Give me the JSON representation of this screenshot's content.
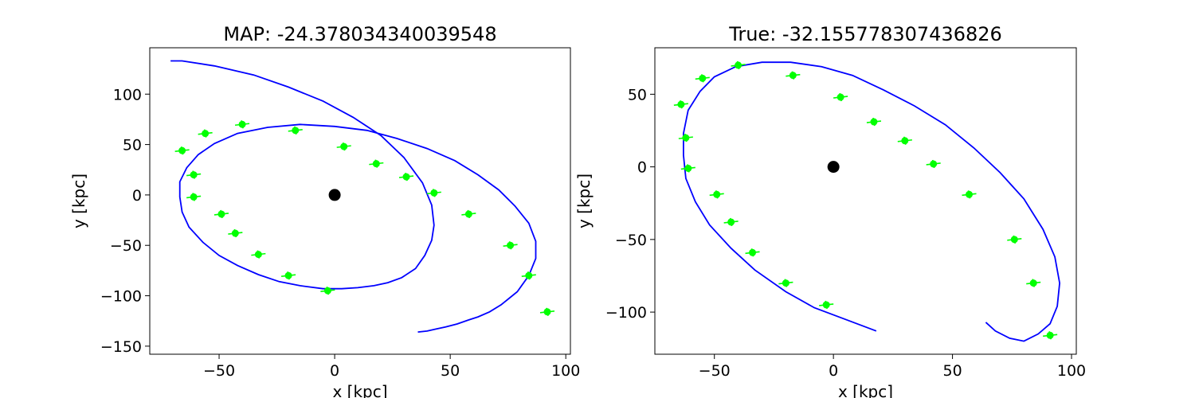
{
  "chart_data": [
    {
      "type": "scatter",
      "title": "MAP: -24.378034340039548",
      "xlabel": "x [kpc]",
      "ylabel": "y [kpc]",
      "xlim": [
        -80,
        102
      ],
      "ylim": [
        -158,
        146
      ],
      "xticks": [
        {
          "v": -50,
          "label": "−50"
        },
        {
          "v": 0,
          "label": "0"
        },
        {
          "v": 50,
          "label": "50"
        },
        {
          "v": 100,
          "label": "100"
        }
      ],
      "yticks": [
        {
          "v": 100,
          "label": "100"
        },
        {
          "v": 50,
          "label": "50"
        },
        {
          "v": 0,
          "label": "0"
        },
        {
          "v": -50,
          "label": "−50"
        },
        {
          "v": -100,
          "label": "−100"
        },
        {
          "v": -150,
          "label": "−150"
        }
      ],
      "grid": false,
      "center": {
        "x": 0,
        "y": 0
      },
      "colors": {
        "orbit": "#0000ff",
        "points": "#00ff00",
        "center": "#000000"
      },
      "orbit": [
        [
          -71,
          133
        ],
        [
          -66,
          133
        ],
        [
          -52,
          128
        ],
        [
          -35,
          119
        ],
        [
          -20,
          107
        ],
        [
          -5,
          93
        ],
        [
          8,
          77
        ],
        [
          20,
          59
        ],
        [
          30,
          37
        ],
        [
          38,
          12
        ],
        [
          42,
          -10
        ],
        [
          43,
          -30
        ],
        [
          42,
          -45
        ],
        [
          39,
          -60
        ],
        [
          35,
          -73
        ],
        [
          29,
          -82
        ],
        [
          23,
          -87
        ],
        [
          17,
          -90
        ],
        [
          10,
          -92
        ],
        [
          3,
          -93
        ],
        [
          -5,
          -93
        ],
        [
          -15,
          -90
        ],
        [
          -24,
          -86
        ],
        [
          -33,
          -79
        ],
        [
          -42,
          -70
        ],
        [
          -50,
          -60
        ],
        [
          -57,
          -47
        ],
        [
          -63,
          -32
        ],
        [
          -66,
          -17
        ],
        [
          -67,
          -2
        ],
        [
          -67,
          13
        ],
        [
          -64,
          27
        ],
        [
          -59,
          40
        ],
        [
          -52,
          51
        ],
        [
          -42,
          61
        ],
        [
          -29,
          67
        ],
        [
          -15,
          70
        ],
        [
          0,
          68
        ],
        [
          14,
          64
        ],
        [
          27,
          56
        ],
        [
          40,
          46
        ],
        [
          52,
          34
        ],
        [
          62,
          20
        ],
        [
          71,
          5
        ],
        [
          78,
          -11
        ],
        [
          84,
          -28
        ],
        [
          87,
          -46
        ],
        [
          87,
          -63
        ],
        [
          84,
          -80
        ],
        [
          79,
          -96
        ],
        [
          72,
          -109
        ],
        [
          67,
          -116
        ],
        [
          62,
          -121
        ],
        [
          58,
          -124
        ],
        [
          53,
          -128
        ],
        [
          48,
          -131
        ],
        [
          44,
          -133
        ],
        [
          40,
          -135
        ],
        [
          36,
          -136
        ]
      ],
      "points": [
        {
          "x": -66,
          "y": 44
        },
        {
          "x": -56,
          "y": 61
        },
        {
          "x": -40,
          "y": 70
        },
        {
          "x": -17,
          "y": 64
        },
        {
          "x": 4,
          "y": 48
        },
        {
          "x": 18,
          "y": 31
        },
        {
          "x": 31,
          "y": 18
        },
        {
          "x": 43,
          "y": 2
        },
        {
          "x": 58,
          "y": -19
        },
        {
          "x": 76,
          "y": -50
        },
        {
          "x": 84,
          "y": -80
        },
        {
          "x": 92,
          "y": -116
        },
        {
          "x": -61,
          "y": 20
        },
        {
          "x": -61,
          "y": -2
        },
        {
          "x": -49,
          "y": -19
        },
        {
          "x": -43,
          "y": -38
        },
        {
          "x": -33,
          "y": -59
        },
        {
          "x": -20,
          "y": -80
        },
        {
          "x": -3,
          "y": -95
        }
      ]
    },
    {
      "type": "scatter",
      "title": "True: -32.155778307436826",
      "xlabel": "x [kpc]",
      "ylabel": "y [kpc]",
      "xlim": [
        -75,
        102
      ],
      "ylim": [
        -129,
        82
      ],
      "xticks": [
        {
          "v": -50,
          "label": "−50"
        },
        {
          "v": 0,
          "label": "0"
        },
        {
          "v": 50,
          "label": "50"
        },
        {
          "v": 100,
          "label": "100"
        }
      ],
      "yticks": [
        {
          "v": 50,
          "label": "50"
        },
        {
          "v": 0,
          "label": "0"
        },
        {
          "v": -50,
          "label": "−50"
        },
        {
          "v": -100,
          "label": "−100"
        }
      ],
      "grid": false,
      "center": {
        "x": 0,
        "y": 0
      },
      "colors": {
        "orbit": "#0000ff",
        "points": "#00ff00",
        "center": "#000000"
      },
      "orbit": [
        [
          18,
          -113
        ],
        [
          5,
          -105
        ],
        [
          -8,
          -97
        ],
        [
          -20,
          -86
        ],
        [
          -33,
          -71
        ],
        [
          -43,
          -56
        ],
        [
          -52,
          -40
        ],
        [
          -58,
          -24
        ],
        [
          -62,
          -8
        ],
        [
          -63,
          8
        ],
        [
          -63,
          23
        ],
        [
          -61,
          39
        ],
        [
          -56,
          52
        ],
        [
          -50,
          62
        ],
        [
          -41,
          69
        ],
        [
          -30,
          72
        ],
        [
          -18,
          72
        ],
        [
          -5,
          69
        ],
        [
          8,
          63
        ],
        [
          21,
          53
        ],
        [
          34,
          42
        ],
        [
          47,
          29
        ],
        [
          59,
          13
        ],
        [
          70,
          -4
        ],
        [
          80,
          -22
        ],
        [
          88,
          -43
        ],
        [
          93,
          -62
        ],
        [
          95,
          -80
        ],
        [
          94,
          -96
        ],
        [
          91,
          -108
        ],
        [
          86,
          -115
        ],
        [
          80,
          -120
        ],
        [
          74,
          -118
        ],
        [
          68,
          -113
        ],
        [
          64,
          -107
        ]
      ],
      "points": [
        {
          "x": -64,
          "y": 43
        },
        {
          "x": -55,
          "y": 61
        },
        {
          "x": -40,
          "y": 70
        },
        {
          "x": -17,
          "y": 63
        },
        {
          "x": 3,
          "y": 48
        },
        {
          "x": 17,
          "y": 31
        },
        {
          "x": 30,
          "y": 18
        },
        {
          "x": 42,
          "y": 2
        },
        {
          "x": 57,
          "y": -19
        },
        {
          "x": 76,
          "y": -50
        },
        {
          "x": 84,
          "y": -80
        },
        {
          "x": 91,
          "y": -116
        },
        {
          "x": -62,
          "y": 20
        },
        {
          "x": -61,
          "y": -1
        },
        {
          "x": -49,
          "y": -19
        },
        {
          "x": -43,
          "y": -38
        },
        {
          "x": -34,
          "y": -59
        },
        {
          "x": -20,
          "y": -80
        },
        {
          "x": -3,
          "y": -95
        }
      ]
    }
  ]
}
